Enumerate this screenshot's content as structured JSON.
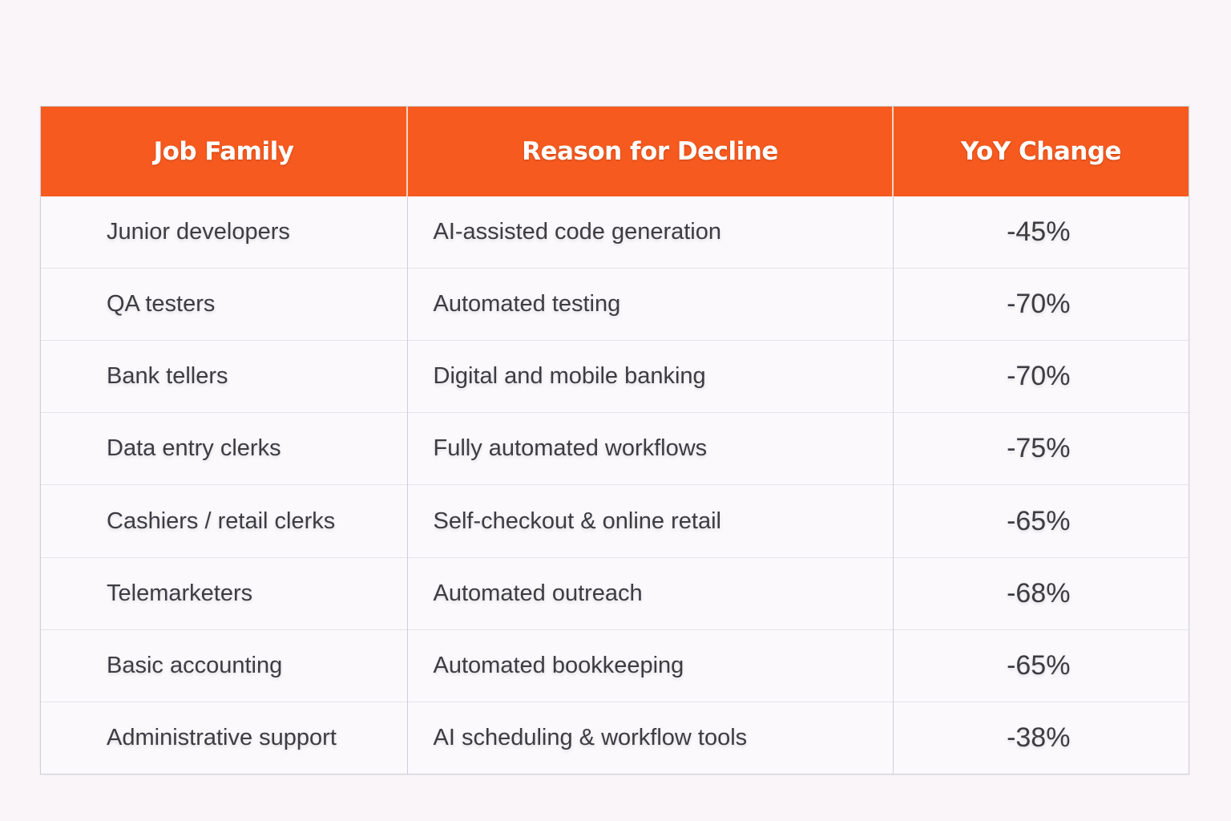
{
  "table": {
    "headers": [
      "Job Family",
      "Reason for Decline",
      "YoY Change"
    ],
    "rows": [
      [
        "Junior developers",
        "AI-assisted code generation",
        "-45%"
      ],
      [
        "QA testers",
        "Automated testing",
        "-70%"
      ],
      [
        "Bank tellers",
        "Digital and mobile banking",
        "-70%"
      ],
      [
        "Data entry clerks",
        "Fully automated workflows",
        "-75%"
      ],
      [
        "Cashiers / retail clerks",
        "Self-checkout & online retail",
        "-65%"
      ],
      [
        "Telemarketers",
        "Automated outreach",
        "-68%"
      ],
      [
        "Basic accounting",
        "Automated bookkeeping",
        "-65%"
      ],
      [
        "Administrative support",
        "AI scheduling & workflow tools",
        "-38%"
      ]
    ]
  },
  "colors": {
    "header_bg": "#f65a1f",
    "header_text": "#ffffff",
    "body_text": "#3c3c42",
    "page_bg": "#f9f5f9"
  }
}
